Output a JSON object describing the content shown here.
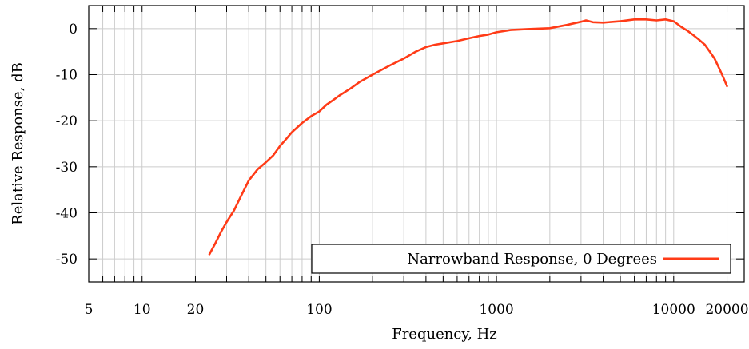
{
  "chart_data": {
    "type": "line",
    "title": "",
    "xlabel": "Frequency, Hz",
    "ylabel": "Relative Response, dB",
    "x_scale": "log",
    "xlim": [
      5,
      25000
    ],
    "ylim": [
      -55,
      5
    ],
    "x_ticks": [
      5,
      10,
      20,
      100,
      1000,
      10000,
      20000
    ],
    "x_tick_labels": [
      "5",
      "10",
      "20",
      "100",
      "1000",
      "10000",
      "20000"
    ],
    "y_ticks": [
      0,
      -10,
      -20,
      -30,
      -40,
      -50
    ],
    "y_tick_labels": [
      "0",
      "-10",
      "-20",
      "-30",
      "-40",
      "-50"
    ],
    "grid": true,
    "legend_position": "bottom-right",
    "colors": {
      "series": "#ff3b17",
      "grid": "#cccccc",
      "axis": "#000000"
    },
    "series": [
      {
        "name": "Narrowband Response, 0 Degrees",
        "x": [
          24,
          26,
          28,
          30,
          33,
          36,
          40,
          45,
          50,
          55,
          60,
          65,
          70,
          80,
          90,
          100,
          110,
          120,
          130,
          150,
          170,
          200,
          250,
          300,
          350,
          400,
          450,
          500,
          600,
          700,
          800,
          900,
          1000,
          1200,
          1500,
          2000,
          2500,
          3000,
          3200,
          3500,
          4000,
          5000,
          6000,
          7000,
          8000,
          9000,
          10000,
          11000,
          12000,
          13000,
          14000,
          15000,
          16000,
          17000,
          18000,
          19000,
          20000
        ],
        "y": [
          -49,
          -46.5,
          -44,
          -42,
          -39.5,
          -36.5,
          -33,
          -30.5,
          -29,
          -27.5,
          -25.5,
          -24,
          -22.5,
          -20.5,
          -19,
          -18,
          -16.5,
          -15.5,
          -14.5,
          -13,
          -11.5,
          -10,
          -8,
          -6.5,
          -5,
          -4,
          -3.5,
          -3.2,
          -2.7,
          -2.1,
          -1.6,
          -1.3,
          -0.8,
          -0.3,
          -0.1,
          0.1,
          0.8,
          1.5,
          1.8,
          1.4,
          1.3,
          1.6,
          2,
          2,
          1.8,
          2,
          1.6,
          0.4,
          -0.5,
          -1.5,
          -2.5,
          -3.5,
          -5,
          -6.5,
          -8.5,
          -10.5,
          -12.5
        ]
      }
    ]
  }
}
